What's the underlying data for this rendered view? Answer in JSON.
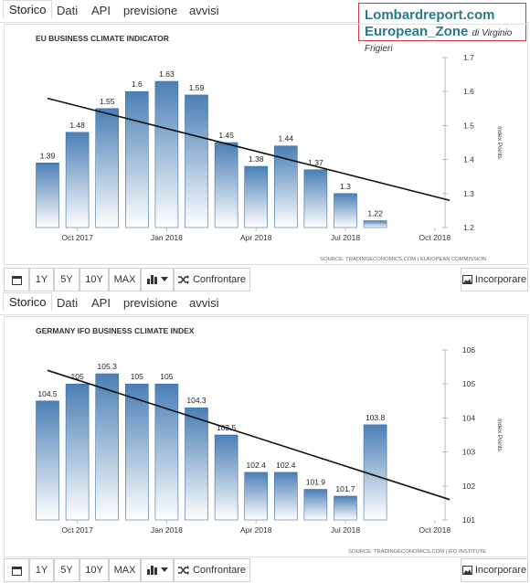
{
  "tabs": [
    "Storico",
    "Dati",
    "API",
    "previsione",
    "avvisi"
  ],
  "brand": {
    "line1": "Lombardreport.com",
    "line2": "European_Zone",
    "byline": "di Virginio Frigieri"
  },
  "toolbar": {
    "ranges": [
      "1Y",
      "5Y",
      "10Y",
      "MAX"
    ],
    "compare_label": "Confrontare",
    "embed_label": "Incorporare",
    "icons": [
      "calendar-icon",
      "bar-chart-icon",
      "chevron-down-icon",
      "shuffle-icon",
      "image-icon"
    ]
  },
  "chart_data": [
    {
      "type": "bar",
      "title": "EU BUSINESS CLIMATE INDICATOR",
      "ylabel": "Index Points",
      "categories": [
        "Sep 2017",
        "Oct 2017",
        "Nov 2017",
        "Dec 2017",
        "Jan 2018",
        "Feb 2018",
        "Mar 2018",
        "Apr 2018",
        "May 2018",
        "Jun 2018",
        "Jul 2018",
        "Aug 2018"
      ],
      "values": [
        1.39,
        1.48,
        1.55,
        1.6,
        1.63,
        1.59,
        1.45,
        1.38,
        1.44,
        1.37,
        1.3,
        1.22
      ],
      "x_ticks": [
        "Oct 2017",
        "Jan 2018",
        "Apr 2018",
        "Jul 2018",
        "Oct 2018"
      ],
      "y_ticks": [
        "1.2",
        "1.3",
        "1.4",
        "1.5",
        "1.6",
        "1.7"
      ],
      "ylim": [
        1.2,
        1.7
      ],
      "trendline": {
        "start": 1.58,
        "end": 1.28
      },
      "source": "SOURCE: TRADINGECONOMICS.COM | EUROPEAN COMMISSION",
      "color": "#4a7fb5"
    },
    {
      "type": "bar",
      "title": "GERMANY IFO BUSINESS CLIMATE INDEX",
      "ylabel": "Index Points",
      "categories": [
        "Sep 2017",
        "Oct 2017",
        "Nov 2017",
        "Dec 2017",
        "Jan 2018",
        "Feb 2018",
        "Mar 2018",
        "Apr 2018",
        "May 2018",
        "Jun 2018",
        "Jul 2018",
        "Aug 2018"
      ],
      "values": [
        104.5,
        105,
        105.3,
        105,
        105,
        104.3,
        103.5,
        102.4,
        102.4,
        101.9,
        101.7,
        103.8
      ],
      "x_ticks": [
        "Oct 2017",
        "Jan 2018",
        "Apr 2018",
        "Jul 2018",
        "Oct 2018"
      ],
      "y_ticks": [
        "101",
        "102",
        "103",
        "104",
        "105",
        "106"
      ],
      "ylim": [
        101,
        106
      ],
      "trendline": {
        "start": 105.4,
        "end": 101.6
      },
      "source": "SOURCE: TRADINGECONOMICS.COM | IFO INSTITUTE",
      "color": "#4a7fb5"
    }
  ]
}
